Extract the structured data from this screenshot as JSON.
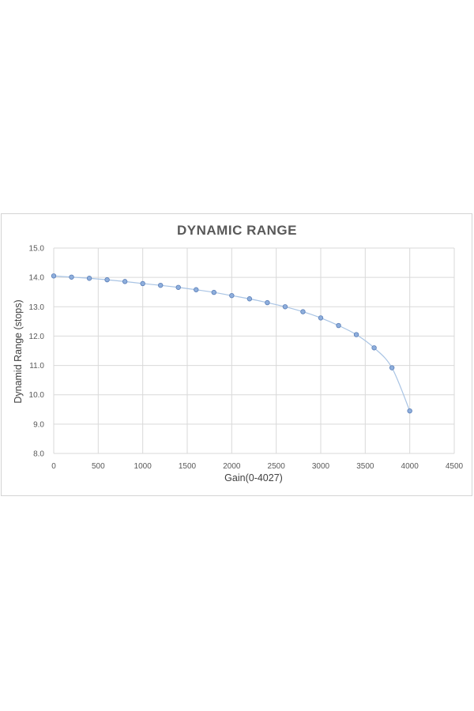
{
  "chart_data": {
    "type": "scatter",
    "title": "DYNAMIC RANGE",
    "xlabel": "Gain(0-4027)",
    "ylabel": "Dynamid Range (stops)",
    "xlim": [
      0,
      4500
    ],
    "ylim": [
      8.0,
      15.0
    ],
    "xticks": [
      0,
      500,
      1000,
      1500,
      2000,
      2500,
      3000,
      3500,
      4000,
      4500
    ],
    "yticks": [
      "8.0",
      "9.0",
      "10.0",
      "11.0",
      "12.0",
      "13.0",
      "14.0",
      "15.0"
    ],
    "grid": true,
    "series": [
      {
        "x": [
          0,
          200,
          400,
          600,
          800,
          1000,
          1200,
          1400,
          1600,
          1800,
          2000,
          2200,
          2400,
          2600,
          2800,
          3000,
          3200,
          3400,
          3600,
          3800,
          4000
        ],
        "y": [
          14.05,
          14.01,
          13.97,
          13.92,
          13.86,
          13.79,
          13.73,
          13.66,
          13.58,
          13.49,
          13.38,
          13.27,
          13.14,
          13.0,
          12.83,
          12.62,
          12.36,
          12.05,
          11.6,
          10.92,
          9.45
        ]
      }
    ],
    "colors": {
      "line": "#a9c4e4",
      "marker": "#8eaedc"
    }
  }
}
